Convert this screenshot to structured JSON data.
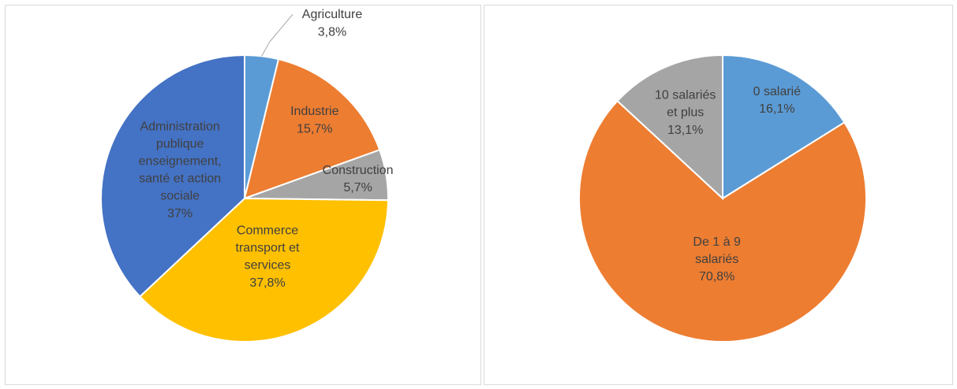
{
  "chart_data": [
    {
      "type": "pie",
      "categories": [
        "Agriculture",
        "Industrie",
        "Construction",
        "Commerce transport et services",
        "Administration publique enseignement, santé et action sociale"
      ],
      "values": [
        3.8,
        15.7,
        5.7,
        37.8,
        37
      ],
      "value_labels": [
        "3,8%",
        "15,7%",
        "5,7%",
        "37,8%",
        "37%"
      ],
      "colors": [
        "#5b9bd5",
        "#ed7d31",
        "#a5a5a5",
        "#ffc000",
        "#4472c4"
      ]
    },
    {
      "type": "pie",
      "categories": [
        "0 salarié",
        "De 1 à 9 salariés",
        "10 salariés et plus"
      ],
      "values": [
        16.1,
        70.8,
        13.1
      ],
      "value_labels": [
        "16,1%",
        "70,8%",
        "13,1%"
      ],
      "colors": [
        "#5b9bd5",
        "#ed7d31",
        "#a5a5a5"
      ]
    }
  ]
}
